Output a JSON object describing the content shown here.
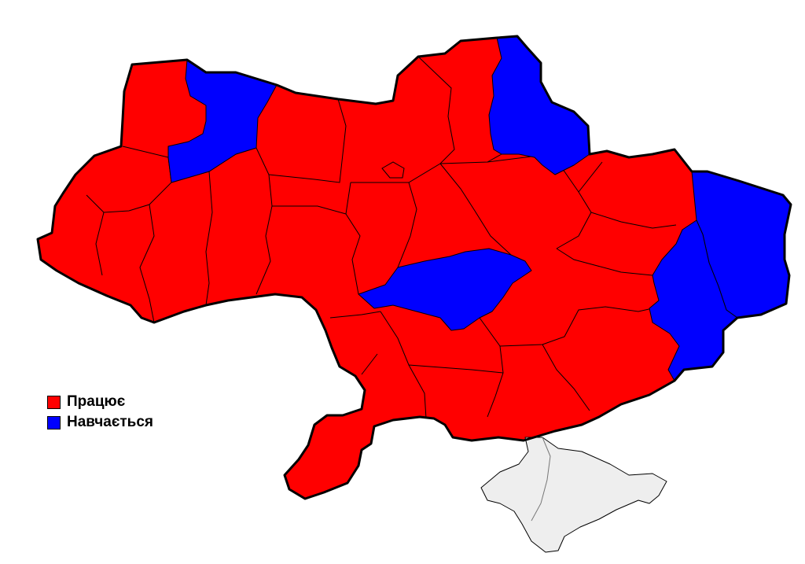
{
  "legend": {
    "items": [
      {
        "label": "Працює",
        "color": "#ff0000"
      },
      {
        "label": "Навчається",
        "color": "#0000ff"
      }
    ]
  },
  "map": {
    "regions": [
      {
        "category": "Навчається",
        "color": "#0000ff"
      },
      {
        "category": "Навчається",
        "color": "#0000ff"
      },
      {
        "category": "Навчається",
        "color": "#0000ff"
      },
      {
        "category": "Навчається",
        "color": "#0000ff"
      },
      {
        "category": "Навчається",
        "color": "#0000ff"
      },
      {
        "category": "",
        "color": "#eeeeee"
      }
    ],
    "background_color": "#ff0000"
  }
}
